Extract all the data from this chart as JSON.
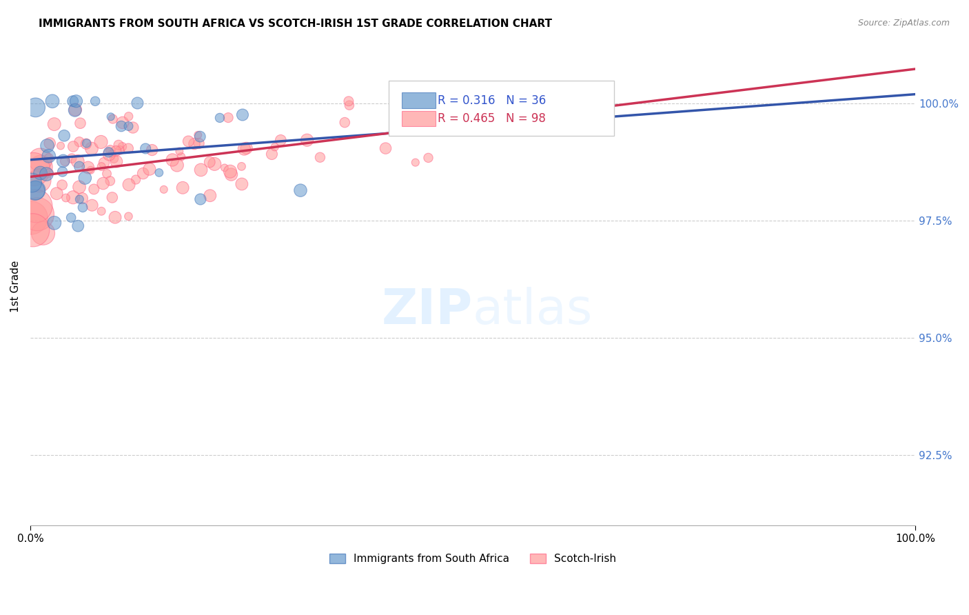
{
  "title": "IMMIGRANTS FROM SOUTH AFRICA VS SCOTCH-IRISH 1ST GRADE CORRELATION CHART",
  "source": "Source: ZipAtlas.com",
  "ylabel": "1st Grade",
  "ytick_labels": [
    "92.5%",
    "95.0%",
    "97.5%",
    "100.0%"
  ],
  "ytick_values": [
    92.5,
    95.0,
    97.5,
    100.0
  ],
  "xlim": [
    0.0,
    100.0
  ],
  "ylim": [
    91.0,
    101.2
  ],
  "blue_R": 0.316,
  "blue_N": 36,
  "pink_R": 0.465,
  "pink_N": 98,
  "blue_color": "#6699CC",
  "pink_color": "#FF9999",
  "blue_edge_color": "#4477BB",
  "pink_edge_color": "#FF6688",
  "blue_line_color": "#3355AA",
  "pink_line_color": "#CC3355",
  "legend_label_blue": "Immigrants from South Africa",
  "legend_label_pink": "Scotch-Irish"
}
